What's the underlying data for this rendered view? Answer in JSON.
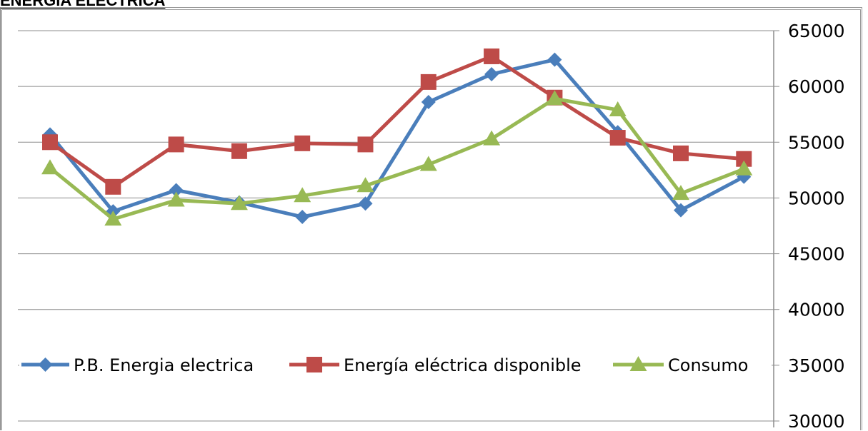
{
  "heading": "ENERGIA ELECTRICA",
  "chart_data": {
    "type": "line",
    "title": "",
    "xlabel": "",
    "ylabel": "",
    "ylim": [
      30000,
      65000
    ],
    "y_ticks": [
      "65000",
      "60000",
      "55000",
      "50000",
      "45000",
      "40000",
      "35000",
      "30000"
    ],
    "y_axis_side": "right",
    "grid": true,
    "legend_placement": "center-left, inside plot",
    "x_count": 12,
    "series": [
      {
        "name": "P.B. Energia electrica",
        "color": "#4a7ebb",
        "marker": "diamond",
        "values": [
          55700,
          48800,
          50700,
          49600,
          48300,
          49500,
          58600,
          61100,
          62400,
          55900,
          48900,
          51900
        ]
      },
      {
        "name": "Energía eléctrica disponible",
        "color": "#be4b48",
        "marker": "square",
        "values": [
          55000,
          51000,
          54800,
          54200,
          54900,
          54800,
          60400,
          62700,
          59000,
          55400,
          54000,
          53500
        ]
      },
      {
        "name": "Consumo",
        "color": "#98b954",
        "marker": "triangle",
        "values": [
          52700,
          48100,
          49800,
          49500,
          50200,
          51100,
          53000,
          55300,
          58900,
          57900,
          50400,
          52600
        ]
      }
    ]
  }
}
